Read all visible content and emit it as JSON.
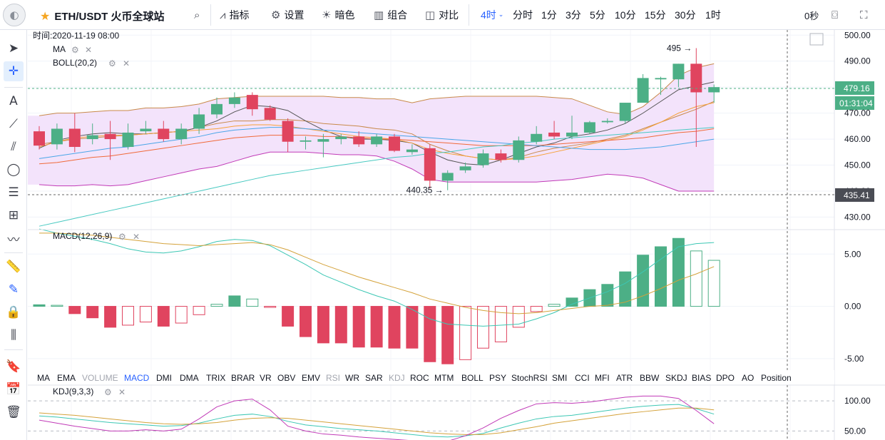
{
  "toolbar": {
    "symbol": "ETH/USDT 火币全球站",
    "indicators_label": "指标",
    "settings_label": "设置",
    "theme_label": "暗色",
    "layout_label": "组合",
    "compare_label": "对比",
    "active_interval": "4时",
    "intervals": [
      "分时",
      "1分",
      "3分",
      "5分",
      "10分",
      "15分",
      "30分",
      "1时"
    ],
    "countdown": "0秒"
  },
  "legend": {
    "time": "时间:2020-11-19 08:00",
    "ma": "MA",
    "boll": "BOLL(20,2)",
    "macd": "MACD(12,26,9)",
    "kdj": "KDJ(9,3,3)"
  },
  "indicator_tabs": [
    "MA",
    "EMA",
    "VOLUME",
    "MACD",
    "DMI",
    "DMA",
    "TRIX",
    "BRAR",
    "VR",
    "OBV",
    "EMV",
    "RSI",
    "WR",
    "SAR",
    "KDJ",
    "ROC",
    "MTM",
    "BOLL",
    "PSY",
    "StochRSI",
    "SMI",
    "CCI",
    "MFI",
    "ATR",
    "BBW",
    "SKDJ",
    "BIAS",
    "DPO",
    "AO",
    "Position"
  ],
  "indicator_tab_states": {
    "active": "MACD",
    "disabled": [
      "VOLUME",
      "RSI",
      "KDJ"
    ]
  },
  "colors": {
    "up": "#4caf86",
    "down": "#e0445f",
    "boll_fill": "#f3e3fb",
    "boll_mid": "#c8894a",
    "boll_edge": "#c13ab7",
    "ma_dark": "#555555",
    "ma_orange": "#f6a23a",
    "ma_red": "#f06a3a",
    "ma_blue": "#4aa6e8",
    "ma_teal": "#48c9c1",
    "macd_dif": "#3cc7b4",
    "macd_dea": "#d4a23a",
    "active_tab": "#2962ff"
  },
  "chart_data": [
    {
      "type": "candlestick",
      "title": "ETH/USDT",
      "ylim": [
        426,
        502
      ],
      "y_ticks": [
        430,
        440,
        450,
        460,
        470,
        480,
        490,
        500
      ],
      "y_tick_labels": [
        "430.00",
        "440.00",
        "450.00",
        "460.00",
        "470.00",
        "480.00",
        "490.00",
        "500.00"
      ],
      "last_price_label": "479.16",
      "countdown_label": "01:31:04",
      "crosshair_price_label": "435.41",
      "annotations": [
        {
          "text": "495",
          "value": 495
        },
        {
          "text": "440.35",
          "value": 440.35
        }
      ],
      "candles": [
        {
          "o": 463.0,
          "h": 465.0,
          "l": 456.0,
          "c": 457.5
        },
        {
          "o": 458.0,
          "h": 466.0,
          "l": 456.0,
          "c": 464.0
        },
        {
          "o": 464.0,
          "h": 470.0,
          "l": 455.0,
          "c": 457.0
        },
        {
          "o": 460.0,
          "h": 466.0,
          "l": 458.0,
          "c": 461.5
        },
        {
          "o": 462.0,
          "h": 467.0,
          "l": 452.0,
          "c": 460.0
        },
        {
          "o": 457.0,
          "h": 466.0,
          "l": 456.0,
          "c": 462.5
        },
        {
          "o": 463.0,
          "h": 467.0,
          "l": 462.0,
          "c": 464.0
        },
        {
          "o": 464.0,
          "h": 467.0,
          "l": 459.0,
          "c": 460.0
        },
        {
          "o": 460.0,
          "h": 466.0,
          "l": 458.0,
          "c": 464.0
        },
        {
          "o": 464.0,
          "h": 472.0,
          "l": 462.0,
          "c": 469.5
        },
        {
          "o": 469.5,
          "h": 476.0,
          "l": 468.0,
          "c": 473.5
        },
        {
          "o": 473.5,
          "h": 478.0,
          "l": 472.0,
          "c": 476.0
        },
        {
          "o": 477.0,
          "h": 478.0,
          "l": 469.0,
          "c": 471.5
        },
        {
          "o": 472.0,
          "h": 473.0,
          "l": 467.0,
          "c": 467.5
        },
        {
          "o": 467.0,
          "h": 468.0,
          "l": 455.0,
          "c": 459.0
        },
        {
          "o": 459.0,
          "h": 461.0,
          "l": 456.0,
          "c": 459.5
        },
        {
          "o": 459.0,
          "h": 462.0,
          "l": 453.0,
          "c": 460.0
        },
        {
          "o": 460.0,
          "h": 462.0,
          "l": 458.0,
          "c": 461.0
        },
        {
          "o": 461.0,
          "h": 463.0,
          "l": 457.0,
          "c": 458.0
        },
        {
          "o": 458.0,
          "h": 462.0,
          "l": 457.0,
          "c": 461.0
        },
        {
          "o": 461.0,
          "h": 462.0,
          "l": 455.0,
          "c": 455.5
        },
        {
          "o": 455.0,
          "h": 458.0,
          "l": 454.0,
          "c": 456.0
        },
        {
          "o": 456.5,
          "h": 458.0,
          "l": 441.0,
          "c": 444.0
        },
        {
          "o": 444.0,
          "h": 448.0,
          "l": 440.35,
          "c": 447.0
        },
        {
          "o": 448.0,
          "h": 451.0,
          "l": 447.0,
          "c": 449.5
        },
        {
          "o": 450.0,
          "h": 456.0,
          "l": 449.0,
          "c": 454.5
        },
        {
          "o": 454.5,
          "h": 456.0,
          "l": 451.0,
          "c": 452.0
        },
        {
          "o": 452.0,
          "h": 461.0,
          "l": 451.0,
          "c": 459.5
        },
        {
          "o": 459.0,
          "h": 465.0,
          "l": 458.0,
          "c": 462.0
        },
        {
          "o": 462.5,
          "h": 467.0,
          "l": 460.0,
          "c": 461.0
        },
        {
          "o": 461.0,
          "h": 469.0,
          "l": 460.0,
          "c": 462.5
        },
        {
          "o": 462.5,
          "h": 467.0,
          "l": 462.0,
          "c": 466.5
        },
        {
          "o": 466.5,
          "h": 468.0,
          "l": 466.0,
          "c": 467.0
        },
        {
          "o": 467.0,
          "h": 474.0,
          "l": 466.0,
          "c": 474.0
        },
        {
          "o": 474.0,
          "h": 485.0,
          "l": 474.0,
          "c": 483.5
        },
        {
          "o": 483.0,
          "h": 484.0,
          "l": 477.0,
          "c": 483.5
        },
        {
          "o": 483.0,
          "h": 489.0,
          "l": 480.0,
          "c": 489.0
        },
        {
          "o": 489.0,
          "h": 495.0,
          "l": 457.0,
          "c": 478.0
        },
        {
          "o": 478.0,
          "h": 481.0,
          "l": 474.0,
          "c": 480.0
        }
      ],
      "boll": {
        "upper": [
          469.0,
          470.0,
          470.0,
          470.5,
          471.0,
          471.0,
          472.0,
          472.0,
          472.5,
          473.5,
          475.5,
          476.0,
          476.5,
          476.5,
          476.5,
          476.5,
          476.5,
          476.0,
          476.0,
          475.5,
          475.5,
          474.0,
          475.5,
          476.0,
          476.5,
          476.5,
          476.5,
          476.5,
          476.5,
          476.0,
          475.5,
          473.0,
          470.5,
          469.5,
          472.5,
          478.0,
          484.5,
          487.5,
          489.0
        ],
        "mid": [
          458.0,
          459.0,
          460.0,
          460.5,
          461.0,
          461.5,
          462.0,
          462.5,
          463.0,
          464.5,
          466.0,
          467.0,
          467.0,
          467.5,
          467.5,
          467.0,
          466.0,
          465.5,
          465.0,
          464.0,
          463.5,
          462.0,
          458.0,
          455.5,
          453.5,
          452.5,
          452.0,
          453.0,
          455.0,
          456.5,
          457.5,
          458.5,
          460.0,
          461.5,
          464.0,
          466.5,
          469.0,
          471.5,
          474.5
        ],
        "lower": [
          442.5,
          442.0,
          442.0,
          442.5,
          442.0,
          442.5,
          444.0,
          445.5,
          447.0,
          448.5,
          449.5,
          451.5,
          453.5,
          455.0,
          455.0,
          455.0,
          454.5,
          454.0,
          454.0,
          453.5,
          451.5,
          448.5,
          444.5,
          443.5,
          443.5,
          443.5,
          443.5,
          443.5,
          443.5,
          444.0,
          444.5,
          445.5,
          446.5,
          446.0,
          445.0,
          442.5,
          440.0,
          440.0,
          440.0
        ]
      },
      "ma": [
        {
          "color_key": "ma_dark",
          "values": [
            456.5,
            459.5,
            461.0,
            462.0,
            462.5,
            462.0,
            462.0,
            462.5,
            463.0,
            464.5,
            467.0,
            470.5,
            473.0,
            472.5,
            471.0,
            467.0,
            463.5,
            461.0,
            460.0,
            460.0,
            459.5,
            458.5,
            455.0,
            452.0,
            450.5,
            450.0,
            452.0,
            454.5,
            457.0,
            458.5,
            461.0,
            462.0,
            463.5,
            466.0,
            470.0,
            474.5,
            479.0,
            480.5,
            482.0
          ]
        },
        {
          "color_key": "ma_orange",
          "values": [
            457.0,
            459.0,
            460.5,
            461.0,
            461.5,
            461.5,
            462.0,
            462.5,
            463.0,
            463.5,
            464.0,
            465.0,
            465.5,
            465.5,
            465.0,
            464.0,
            463.0,
            462.0,
            461.0,
            460.5,
            460.0,
            458.5,
            456.0,
            454.5,
            453.5,
            452.5,
            452.0,
            452.5,
            453.5,
            455.0,
            456.5,
            458.0,
            459.5,
            461.0,
            463.5,
            466.5,
            470.0,
            472.5,
            474.0
          ]
        },
        {
          "color_key": "ma_red",
          "values": [
            450.5,
            451.0,
            452.0,
            453.0,
            453.5,
            454.5,
            455.5,
            456.5,
            457.5,
            458.5,
            459.5,
            460.5,
            461.0,
            461.5,
            461.5,
            461.5,
            461.0,
            461.0,
            460.5,
            460.0,
            460.0,
            459.5,
            459.0,
            458.5,
            458.0,
            457.5,
            457.5,
            457.5,
            457.5,
            458.0,
            458.5,
            459.0,
            459.5,
            460.0,
            460.5,
            461.5,
            462.5,
            463.0,
            464.0
          ]
        },
        {
          "color_key": "ma_blue",
          "values": [
            452.5,
            453.5,
            454.5,
            455.5,
            456.5,
            457.0,
            458.0,
            459.0,
            460.0,
            461.0,
            462.5,
            463.5,
            464.0,
            464.5,
            464.5,
            464.0,
            463.5,
            463.0,
            462.5,
            462.0,
            461.5,
            461.0,
            460.5,
            460.0,
            459.5,
            459.0,
            458.5,
            458.0,
            457.5,
            457.0,
            456.5,
            456.0,
            456.0,
            456.0,
            456.5,
            457.0,
            458.0,
            459.0,
            460.0
          ]
        },
        {
          "color_key": "ma_teal",
          "values": [
            426.5,
            428.0,
            429.5,
            431.0,
            432.5,
            434.0,
            435.5,
            437.0,
            438.5,
            440.0,
            441.5,
            443.0,
            444.5,
            446.0,
            447.0,
            448.0,
            449.0,
            450.0,
            451.0,
            452.0,
            453.0,
            453.5,
            454.5,
            455.0,
            456.0,
            457.0,
            457.5,
            458.5,
            459.0,
            460.0,
            460.5,
            461.0,
            461.5,
            462.0,
            462.5,
            463.0,
            463.5,
            464.0,
            464.5
          ]
        }
      ]
    },
    {
      "type": "bar",
      "title": "MACD(12,26,9)",
      "ylim": [
        -6.1,
        7.2
      ],
      "y_ticks": [
        -5,
        0,
        5
      ],
      "y_tick_labels": [
        "-5.00",
        "0.00",
        "5.00"
      ],
      "hist": [
        0.15,
        0.1,
        -0.7,
        -1.1,
        -2.0,
        -1.8,
        -1.5,
        -1.9,
        -1.6,
        -0.8,
        0.2,
        1.0,
        0.7,
        -0.1,
        -1.9,
        -2.9,
        -3.5,
        -3.5,
        -3.9,
        -3.9,
        -4.0,
        -4.0,
        -5.3,
        -5.5,
        -5.1,
        -4.0,
        -3.4,
        -2.0,
        -0.5,
        0.2,
        0.8,
        1.6,
        2.1,
        3.3,
        4.9,
        5.7,
        6.5,
        5.3,
        4.4
      ],
      "dif": [
        7.4,
        7.0,
        6.7,
        6.4,
        6.0,
        5.5,
        5.2,
        5.1,
        5.3,
        5.7,
        6.2,
        6.4,
        6.3,
        5.8,
        4.9,
        4.0,
        3.0,
        2.3,
        1.6,
        1.0,
        0.5,
        -0.3,
        -1.2,
        -1.7,
        -1.8,
        -1.9,
        -1.8,
        -1.7,
        -1.2,
        -0.6,
        0.2,
        0.8,
        1.4,
        2.2,
        3.3,
        4.5,
        5.7,
        6.0,
        6.1
      ],
      "dea": [
        7.0,
        7.0,
        6.9,
        6.8,
        6.6,
        6.4,
        6.2,
        6.0,
        5.9,
        5.8,
        5.9,
        6.0,
        6.1,
        5.9,
        5.4,
        4.7,
        4.0,
        3.4,
        2.8,
        2.3,
        1.8,
        1.3,
        0.7,
        0.3,
        -0.1,
        -0.4,
        -0.6,
        -0.7,
        -0.6,
        -0.4,
        -0.2,
        0.0,
        0.1,
        0.4,
        1.0,
        1.7,
        2.5,
        3.1,
        3.8
      ]
    },
    {
      "type": "line",
      "title": "KDJ(9,3,3)",
      "ylim": [
        35,
        125
      ],
      "y_ticks": [
        50,
        100
      ],
      "y_tick_labels": [
        "50.00",
        "100.00"
      ],
      "k": [
        75,
        73,
        70,
        67,
        64,
        62,
        60,
        58,
        59,
        63,
        70,
        76,
        78,
        74,
        66,
        60,
        57,
        54,
        52,
        50,
        47,
        44,
        41,
        40,
        42,
        46,
        55,
        63,
        70,
        74,
        76,
        80,
        84,
        88,
        91,
        93,
        94,
        87,
        78
      ],
      "d": [
        80,
        78,
        76,
        73,
        70,
        67,
        64,
        62,
        61,
        62,
        64,
        68,
        71,
        72,
        71,
        68,
        65,
        62,
        59,
        56,
        53,
        50,
        47,
        45,
        44,
        44,
        47,
        52,
        57,
        63,
        67,
        71,
        75,
        79,
        82,
        85,
        88,
        88,
        85
      ],
      "j": [
        68,
        63,
        58,
        54,
        50,
        50,
        52,
        50,
        53,
        70,
        90,
        100,
        103,
        85,
        58,
        50,
        45,
        43,
        40,
        38,
        36,
        34,
        33,
        33,
        42,
        55,
        71,
        84,
        95,
        97,
        96,
        98,
        102,
        106,
        108,
        108,
        104,
        84,
        62
      ]
    }
  ]
}
